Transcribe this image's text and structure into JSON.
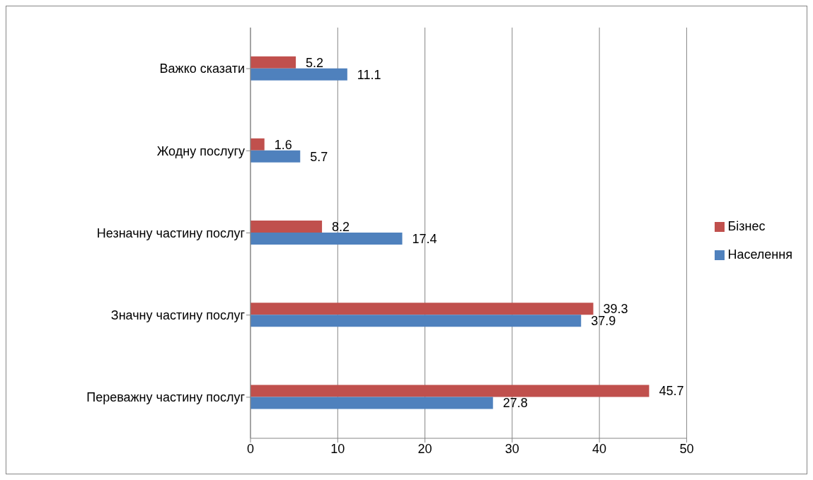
{
  "chart_data": {
    "type": "bar",
    "orientation": "horizontal",
    "categories": [
      "Важко сказати",
      "Жодну послугу",
      "Незначну частину послуг",
      "Значну частину послуг",
      "Переважну частину послуг"
    ],
    "series": [
      {
        "name": "Бізнес",
        "color": "#c0504d",
        "values": [
          5.2,
          1.6,
          8.2,
          39.3,
          45.7
        ]
      },
      {
        "name": "Населення",
        "color": "#4f81bd",
        "values": [
          11.1,
          5.7,
          17.4,
          37.9,
          27.8
        ]
      }
    ],
    "xlim": [
      0,
      50
    ],
    "xticks": [
      0,
      10,
      20,
      30,
      40,
      50
    ],
    "grid": "x",
    "legend": "right",
    "data_labels": true
  }
}
